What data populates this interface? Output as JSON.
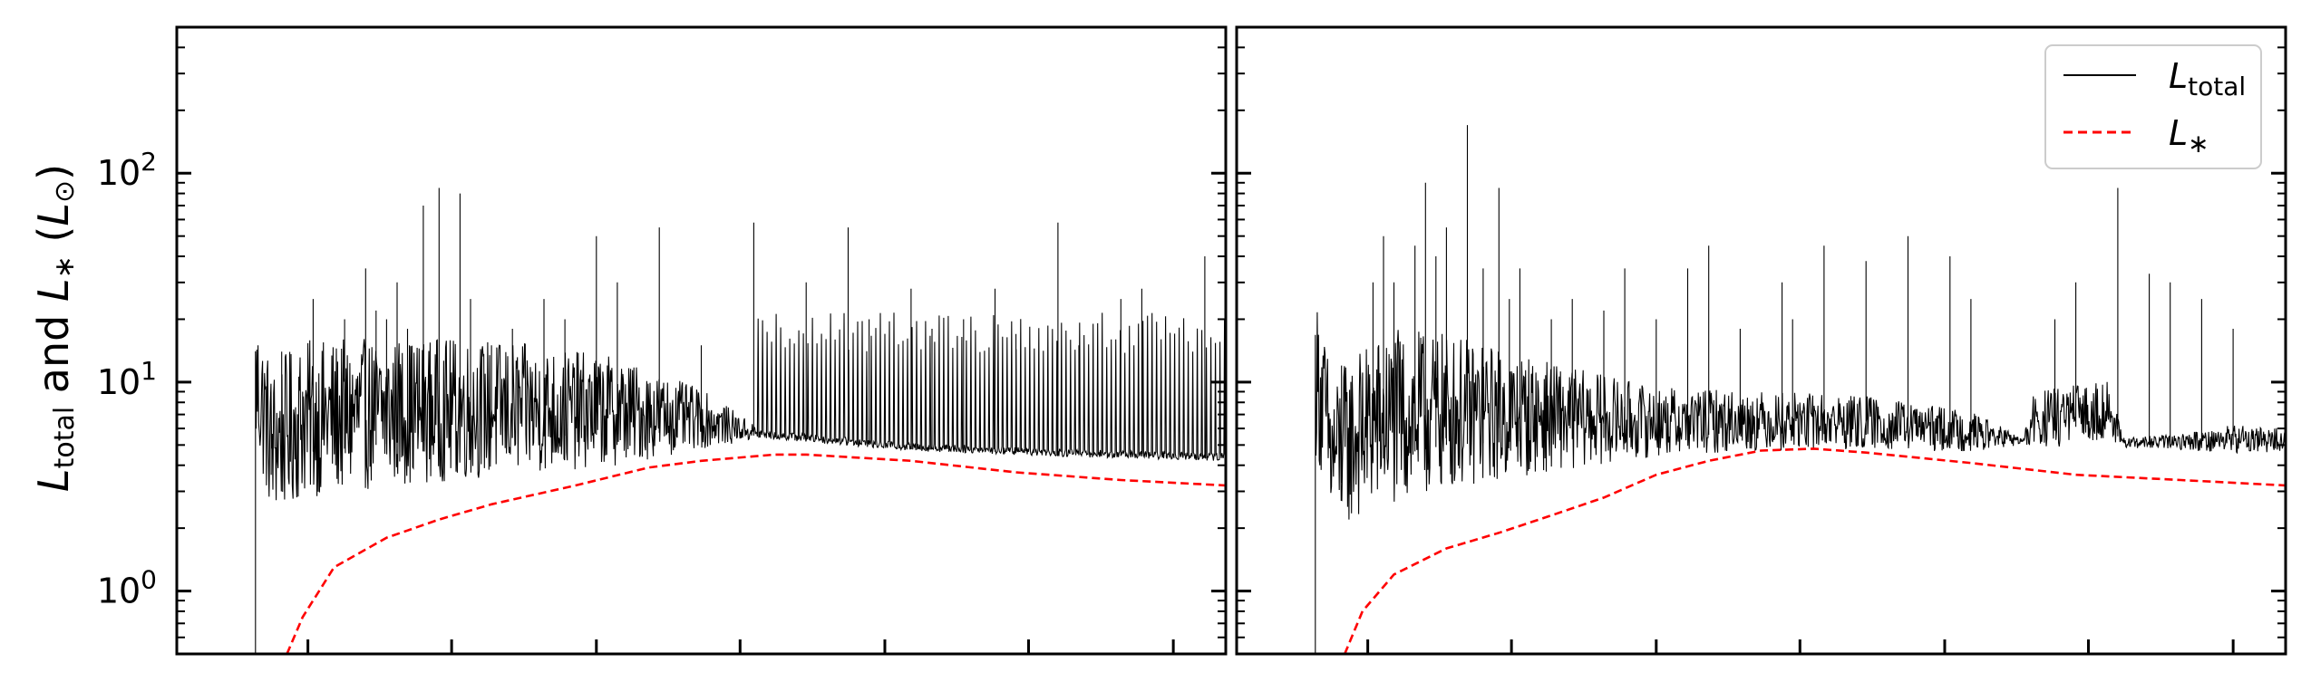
{
  "chart_data": [
    {
      "type": "line",
      "panel": "left",
      "ylabel": "L_total and L_* (L_⊙)",
      "yscale": "log",
      "ylim": [
        0.5,
        500
      ],
      "yticks": [
        {
          "value": 1,
          "label": "10^0"
        },
        {
          "value": 10,
          "label": "10^1"
        },
        {
          "value": 100,
          "label": "10^2"
        }
      ],
      "xlim": [
        0,
        1
      ],
      "xticks": [
        0.125,
        0.262,
        0.4,
        0.537,
        0.675,
        0.812,
        0.95
      ],
      "series": [
        {
          "key": "ltotal",
          "name": "L_total",
          "color": "#000000",
          "style": "solid",
          "start": 0.075,
          "base": [
            [
              0.075,
              7.0
            ],
            [
              0.09,
              3.6
            ],
            [
              0.12,
              4.6
            ],
            [
              0.16,
              4.8
            ],
            [
              0.22,
              5.2
            ],
            [
              0.3,
              5.4
            ],
            [
              0.4,
              5.6
            ],
            [
              0.45,
              5.7
            ],
            [
              0.5,
              5.8
            ],
            [
              0.56,
              5.5
            ],
            [
              0.7,
              4.8
            ],
            [
              0.85,
              4.5
            ],
            [
              1.0,
              4.3
            ]
          ],
          "noise": [
            [
              0.075,
              0.75
            ],
            [
              0.12,
              0.8
            ],
            [
              0.2,
              0.75
            ],
            [
              0.3,
              0.7
            ],
            [
              0.42,
              0.55
            ],
            [
              0.5,
              0.3
            ],
            [
              0.56,
              0.04
            ],
            [
              1.0,
              0.04
            ]
          ],
          "bursts": [
            [
              0.55,
              1.0,
              7,
              20
            ]
          ],
          "spikes": [
            [
              0.09,
              8
            ],
            [
              0.1,
              14
            ],
            [
              0.12,
              9
            ],
            [
              0.13,
              25
            ],
            [
              0.16,
              20
            ],
            [
              0.19,
              22
            ],
            [
              0.18,
              35
            ],
            [
              0.2,
              20
            ],
            [
              0.21,
              30
            ],
            [
              0.22,
              18
            ],
            [
              0.235,
              70
            ],
            [
              0.25,
              85
            ],
            [
              0.27,
              80
            ],
            [
              0.28,
              25
            ],
            [
              0.3,
              15
            ],
            [
              0.32,
              18
            ],
            [
              0.35,
              25
            ],
            [
              0.37,
              20
            ],
            [
              0.4,
              50
            ],
            [
              0.42,
              30
            ],
            [
              0.46,
              55
            ],
            [
              0.5,
              15
            ],
            [
              0.55,
              58
            ],
            [
              0.6,
              30
            ],
            [
              0.64,
              55
            ],
            [
              0.66,
              20
            ],
            [
              0.7,
              28
            ],
            [
              0.72,
              18
            ],
            [
              0.75,
              20
            ],
            [
              0.78,
              28
            ],
            [
              0.8,
              17
            ],
            [
              0.84,
              58
            ],
            [
              0.86,
              15
            ],
            [
              0.9,
              25
            ],
            [
              0.92,
              28
            ],
            [
              0.98,
              40
            ],
            [
              1.0,
              65
            ]
          ]
        },
        {
          "key": "lstar",
          "name": "L_*",
          "color": "#ff0000",
          "style": "dashed",
          "points": [
            [
              0.105,
              0.5
            ],
            [
              0.12,
              0.75
            ],
            [
              0.15,
              1.3
            ],
            [
              0.2,
              1.8
            ],
            [
              0.25,
              2.2
            ],
            [
              0.3,
              2.6
            ],
            [
              0.38,
              3.2
            ],
            [
              0.45,
              3.9
            ],
            [
              0.5,
              4.2
            ],
            [
              0.57,
              4.5
            ],
            [
              0.6,
              4.5
            ],
            [
              0.7,
              4.2
            ],
            [
              0.8,
              3.7
            ],
            [
              0.9,
              3.4
            ],
            [
              1.0,
              3.2
            ]
          ]
        }
      ]
    },
    {
      "type": "line",
      "panel": "right",
      "yscale": "log",
      "ylim": [
        0.5,
        500
      ],
      "yticks": [
        {
          "value": 1,
          "label": ""
        },
        {
          "value": 10,
          "label": ""
        },
        {
          "value": 100,
          "label": ""
        }
      ],
      "xlim": [
        0,
        1
      ],
      "xticks": [
        0.125,
        0.262,
        0.4,
        0.537,
        0.675,
        0.812,
        0.95
      ],
      "legend": {
        "position": "top-right",
        "entries": [
          {
            "series": "ltotal",
            "label": "L_total"
          },
          {
            "series": "lstar",
            "label": "L_*"
          }
        ]
      },
      "series": [
        {
          "key": "ltotal",
          "name": "L_total",
          "color": "#000000",
          "style": "solid",
          "start": 0.075,
          "base": [
            [
              0.075,
              7.5
            ],
            [
              0.09,
              3.0
            ],
            [
              0.13,
              4.2
            ],
            [
              0.2,
              5.0
            ],
            [
              0.3,
              5.3
            ],
            [
              0.4,
              5.5
            ],
            [
              0.5,
              5.7
            ],
            [
              0.6,
              5.6
            ],
            [
              0.7,
              5.3
            ],
            [
              0.75,
              5.1
            ],
            [
              0.76,
              5.6
            ],
            [
              0.83,
              6.5
            ],
            [
              0.845,
              5.0
            ],
            [
              0.9,
              5.0
            ],
            [
              1.0,
              5.0
            ]
          ],
          "noise": [
            [
              0.075,
              0.8
            ],
            [
              0.15,
              0.9
            ],
            [
              0.22,
              0.75
            ],
            [
              0.3,
              0.55
            ],
            [
              0.4,
              0.35
            ],
            [
              0.5,
              0.3
            ],
            [
              0.6,
              0.28
            ],
            [
              0.7,
              0.2
            ],
            [
              0.75,
              0.04
            ],
            [
              0.76,
              0.3
            ],
            [
              0.83,
              0.3
            ],
            [
              0.845,
              0.05
            ],
            [
              0.9,
              0.08
            ],
            [
              0.95,
              0.15
            ],
            [
              1.0,
              0.12
            ]
          ],
          "bursts": [],
          "spikes": [
            [
              0.1,
              12
            ],
            [
              0.13,
              30
            ],
            [
              0.14,
              50
            ],
            [
              0.15,
              30
            ],
            [
              0.17,
              45
            ],
            [
              0.18,
              90
            ],
            [
              0.19,
              40
            ],
            [
              0.2,
              55
            ],
            [
              0.22,
              170
            ],
            [
              0.235,
              35
            ],
            [
              0.25,
              85
            ],
            [
              0.26,
              25
            ],
            [
              0.27,
              35
            ],
            [
              0.3,
              20
            ],
            [
              0.32,
              25
            ],
            [
              0.35,
              22
            ],
            [
              0.37,
              35
            ],
            [
              0.4,
              20
            ],
            [
              0.43,
              35
            ],
            [
              0.45,
              45
            ],
            [
              0.48,
              18
            ],
            [
              0.52,
              30
            ],
            [
              0.53,
              20
            ],
            [
              0.56,
              45
            ],
            [
              0.6,
              38
            ],
            [
              0.64,
              50
            ],
            [
              0.68,
              40
            ],
            [
              0.7,
              25
            ],
            [
              0.78,
              20
            ],
            [
              0.8,
              30
            ],
            [
              0.84,
              85
            ],
            [
              0.87,
              33
            ],
            [
              0.89,
              30
            ],
            [
              0.92,
              25
            ],
            [
              0.95,
              18
            ]
          ]
        },
        {
          "key": "lstar",
          "name": "L_*",
          "color": "#ff0000",
          "style": "dashed",
          "points": [
            [
              0.103,
              0.5
            ],
            [
              0.12,
              0.8
            ],
            [
              0.15,
              1.2
            ],
            [
              0.2,
              1.6
            ],
            [
              0.25,
              1.9
            ],
            [
              0.3,
              2.3
            ],
            [
              0.35,
              2.8
            ],
            [
              0.4,
              3.6
            ],
            [
              0.45,
              4.2
            ],
            [
              0.5,
              4.7
            ],
            [
              0.55,
              4.8
            ],
            [
              0.6,
              4.6
            ],
            [
              0.7,
              4.1
            ],
            [
              0.8,
              3.6
            ],
            [
              0.9,
              3.4
            ],
            [
              1.0,
              3.2
            ]
          ]
        }
      ]
    }
  ]
}
